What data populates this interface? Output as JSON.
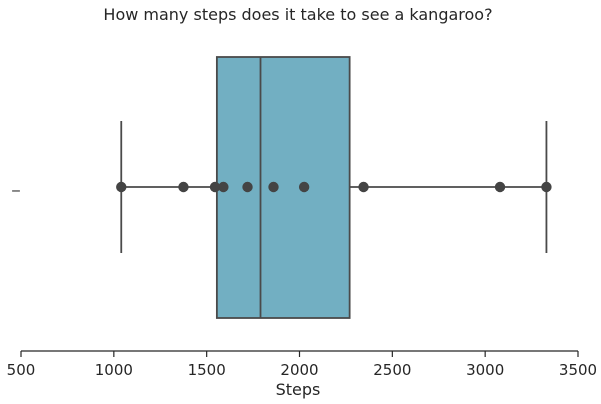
{
  "chart_data": {
    "type": "box",
    "title": "How many steps does it take to see a kangaroo?",
    "xlabel": "Steps",
    "ylabel": "",
    "xlim": [
      500,
      3500
    ],
    "xticks": [
      500,
      1000,
      1500,
      2000,
      2500,
      3000,
      3500
    ],
    "y_tick_labels": [
      "_"
    ],
    "box": {
      "min": 1040,
      "q1": 1555,
      "median": 1790,
      "q3": 2270,
      "max": 3330
    },
    "points": [
      1040,
      1375,
      1545,
      1590,
      1720,
      1860,
      2025,
      2345,
      3080,
      3330
    ],
    "grid": false,
    "colors": {
      "box_fill": "#72afc2",
      "line": "#4a4a4a",
      "points": "#444444"
    }
  }
}
